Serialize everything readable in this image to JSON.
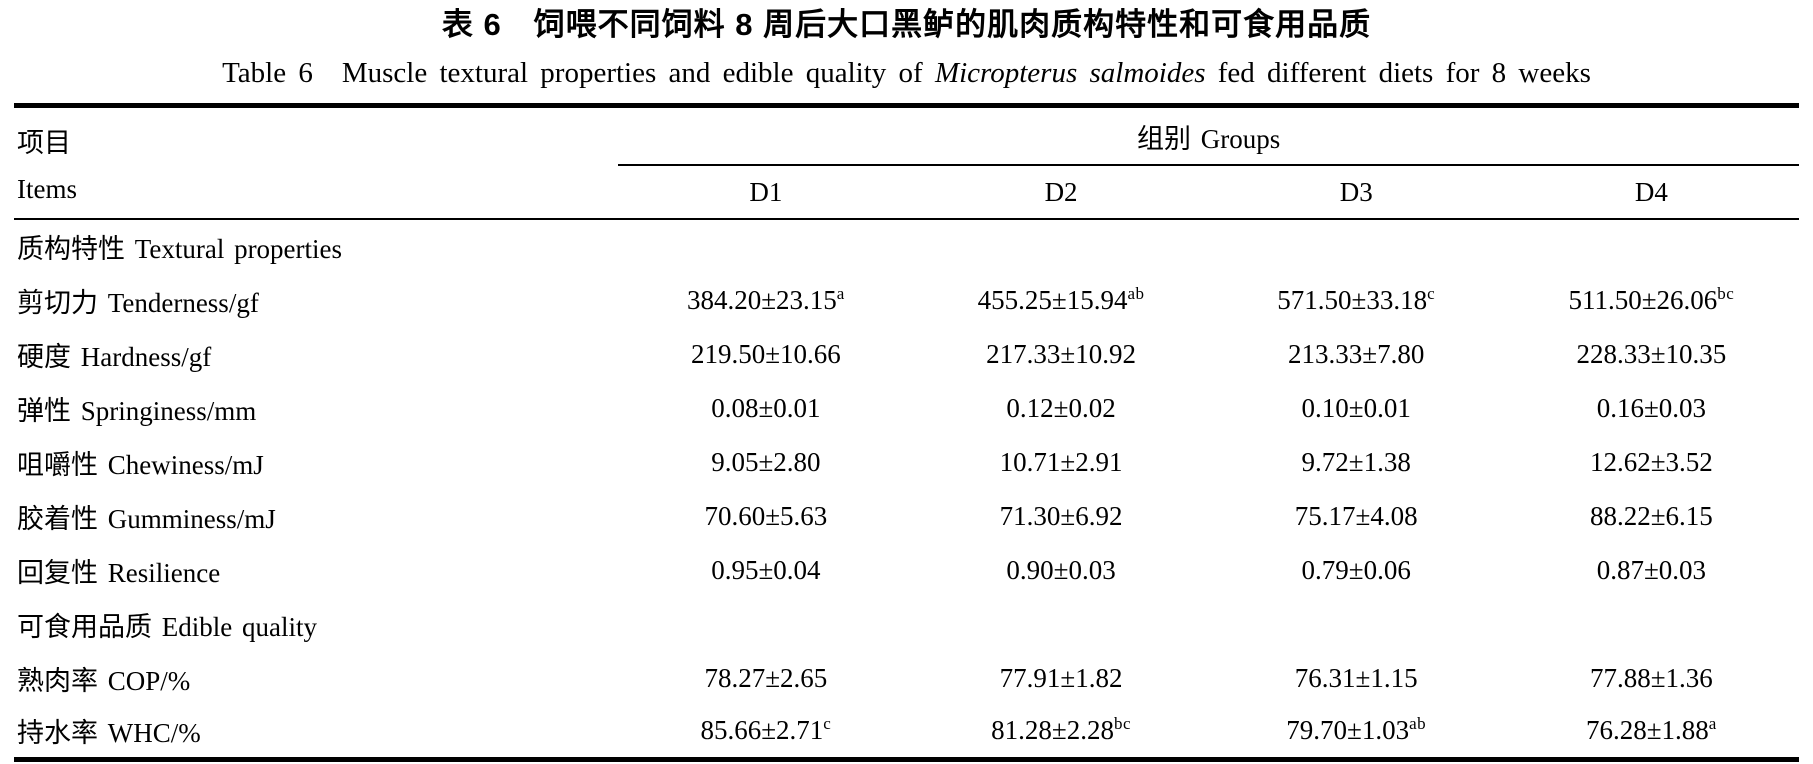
{
  "page": {
    "title_zh": "表 6　饲喂不同饲料 8 周后大口黑鲈的肌肉质构特性和可食用品质",
    "title_en_prefix": "Table 6　Muscle textural properties and edible quality of ",
    "title_en_italic": "Micropterus salmoides",
    "title_en_suffix": " fed different diets for 8 weeks"
  },
  "table": {
    "header": {
      "items_zh": "项目",
      "items_en": "Items",
      "groups": "组别 Groups",
      "group_columns": [
        "D1",
        "D2",
        "D3",
        "D4"
      ]
    },
    "rows": [
      {
        "type": "section",
        "label": "质构特性 Textural properties"
      },
      {
        "type": "data",
        "label": "剪切力 Tenderness/gf",
        "values": [
          {
            "v": "384.20±23.15",
            "sup": "a"
          },
          {
            "v": "455.25±15.94",
            "sup": "ab"
          },
          {
            "v": "571.50±33.18",
            "sup": "c"
          },
          {
            "v": "511.50±26.06",
            "sup": "bc"
          }
        ]
      },
      {
        "type": "data",
        "label": "硬度 Hardness/gf",
        "values": [
          {
            "v": "219.50±10.66",
            "sup": ""
          },
          {
            "v": "217.33±10.92",
            "sup": ""
          },
          {
            "v": "213.33±7.80",
            "sup": ""
          },
          {
            "v": "228.33±10.35",
            "sup": ""
          }
        ]
      },
      {
        "type": "data",
        "label": "弹性 Springiness/mm",
        "values": [
          {
            "v": "0.08±0.01",
            "sup": ""
          },
          {
            "v": "0.12±0.02",
            "sup": ""
          },
          {
            "v": "0.10±0.01",
            "sup": ""
          },
          {
            "v": "0.16±0.03",
            "sup": ""
          }
        ]
      },
      {
        "type": "data",
        "label": "咀嚼性 Chewiness/mJ",
        "values": [
          {
            "v": "9.05±2.80",
            "sup": ""
          },
          {
            "v": "10.71±2.91",
            "sup": ""
          },
          {
            "v": "9.72±1.38",
            "sup": ""
          },
          {
            "v": "12.62±3.52",
            "sup": ""
          }
        ]
      },
      {
        "type": "data",
        "label": "胶着性 Gumminess/mJ",
        "values": [
          {
            "v": "70.60±5.63",
            "sup": ""
          },
          {
            "v": "71.30±6.92",
            "sup": ""
          },
          {
            "v": "75.17±4.08",
            "sup": ""
          },
          {
            "v": "88.22±6.15",
            "sup": ""
          }
        ]
      },
      {
        "type": "data",
        "label": "回复性 Resilience",
        "values": [
          {
            "v": "0.95±0.04",
            "sup": ""
          },
          {
            "v": "0.90±0.03",
            "sup": ""
          },
          {
            "v": "0.79±0.06",
            "sup": ""
          },
          {
            "v": "0.87±0.03",
            "sup": ""
          }
        ]
      },
      {
        "type": "section",
        "label": "可食用品质 Edible quality"
      },
      {
        "type": "data",
        "label": "熟肉率 COP/%",
        "values": [
          {
            "v": "78.27±2.65",
            "sup": ""
          },
          {
            "v": "77.91±1.82",
            "sup": ""
          },
          {
            "v": "76.31±1.15",
            "sup": ""
          },
          {
            "v": "77.88±1.36",
            "sup": ""
          }
        ]
      },
      {
        "type": "data",
        "label": "持水率 WHC/%",
        "values": [
          {
            "v": "85.66±2.71",
            "sup": "c"
          },
          {
            "v": "81.28±2.28",
            "sup": "bc"
          },
          {
            "v": "79.70±1.03",
            "sup": "ab"
          },
          {
            "v": "76.28±1.88",
            "sup": "a"
          }
        ]
      }
    ]
  },
  "colors": {
    "text": "#000000",
    "background": "#ffffff",
    "rule": "#000000"
  }
}
